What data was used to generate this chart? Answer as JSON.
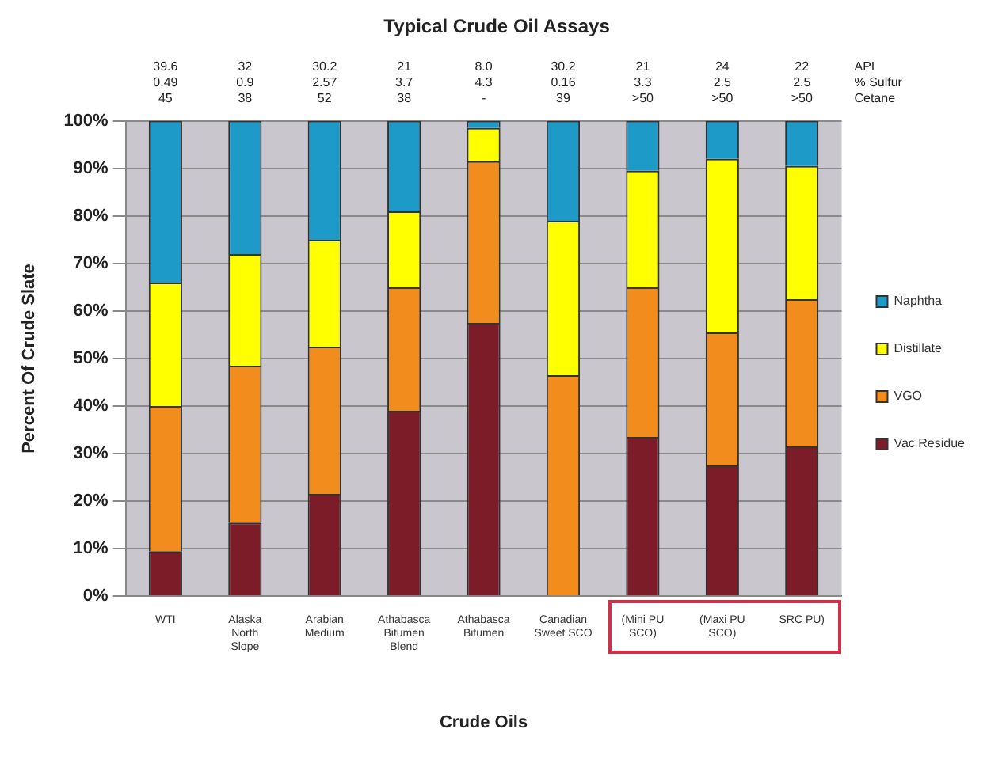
{
  "chart_data": {
    "type": "bar",
    "stacked": true,
    "title": "Typical Crude Oil Assays",
    "xlabel": "Crude Oils",
    "ylabel": "Percent Of Crude Slate",
    "categories": [
      "WTI",
      "Alaska North Slope",
      "Arabian Medium",
      "Athabasca Bitumen Blend",
      "Athabasca Bitumen",
      "Canadian Sweet SCO",
      "(Mini PU SCO)",
      "(Maxi PU SCO)",
      "SRC PU)"
    ],
    "series": [
      {
        "name": "Vac Residue",
        "color": "#7b1c28",
        "values": [
          9.5,
          15.5,
          21.5,
          39,
          57.5,
          0,
          33.5,
          27.5,
          31.5
        ]
      },
      {
        "name": "VGO",
        "color": "#f28c1c",
        "values": [
          30.5,
          33,
          31,
          26,
          34,
          46.5,
          31.5,
          28,
          31
        ]
      },
      {
        "name": "Distillate",
        "color": "#ffff00",
        "values": [
          26,
          23.5,
          22.5,
          16,
          7,
          32.5,
          24.5,
          36.5,
          28
        ]
      },
      {
        "name": "Naphtha",
        "color": "#1e9ac8",
        "values": [
          34,
          28,
          25,
          19,
          1.5,
          21,
          10.5,
          8,
          9.5
        ]
      }
    ],
    "ylim": [
      0,
      100
    ],
    "yticks": [
      {
        "value": 0,
        "label": "0%"
      },
      {
        "value": 10,
        "label": "10%"
      },
      {
        "value": 20,
        "label": "20%"
      },
      {
        "value": 30,
        "label": "30%"
      },
      {
        "value": 40,
        "label": "40%"
      },
      {
        "value": 50,
        "label": "50%"
      },
      {
        "value": 60,
        "label": "60%"
      },
      {
        "value": 70,
        "label": "70%"
      },
      {
        "value": 80,
        "label": "80%"
      },
      {
        "value": 90,
        "label": "90%"
      },
      {
        "value": 100,
        "label": "100%"
      }
    ],
    "grid": "y",
    "legend": "right",
    "annotations": [
      "39.6\n0.49\n45",
      "32\n0.9\n38",
      "30.2\n2.57\n52",
      "21\n3.7\n38",
      "8.0\n4.3\n-",
      "30.2\n0.16\n39",
      "21\n3.3\n>50",
      "24\n2.5\n>50",
      "22\n2.5\n>50",
      "API\n% Sulfur\nCetane"
    ]
  }
}
